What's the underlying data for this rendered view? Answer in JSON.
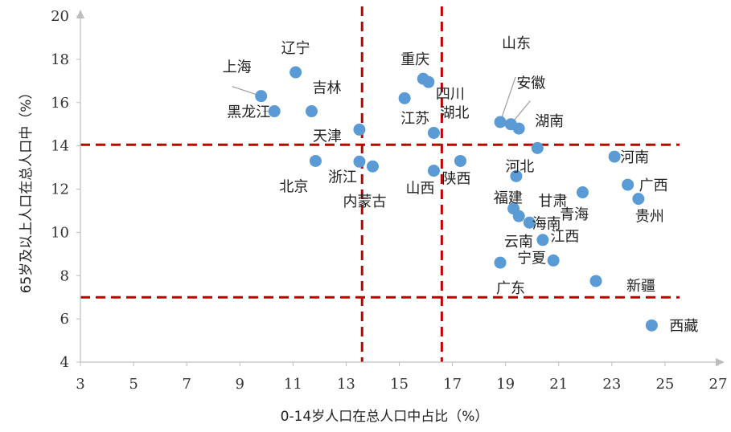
{
  "chart_data": {
    "type": "scatter",
    "title": "",
    "xlabel": "0-14岁人口在总人口中占比（%）",
    "ylabel": "65岁及以上人口在总人口中（%）",
    "xlim": [
      3,
      27
    ],
    "ylim": [
      4,
      20
    ],
    "xticks": [
      "3",
      "5",
      "7",
      "9",
      "11",
      "13",
      "15",
      "17",
      "19",
      "21",
      "23",
      "25",
      "27"
    ],
    "yticks": [
      "4",
      "6",
      "8",
      "10",
      "12",
      "14",
      "16",
      "18",
      "20"
    ],
    "grid": false,
    "reference_lines": {
      "x": [
        13.6,
        16.6
      ],
      "y": [
        7.0,
        14.05
      ]
    },
    "point_color": "#5B9BD5",
    "reference_color": "#C00000",
    "points": [
      {
        "name": "辽宁",
        "x": 11.1,
        "y": 17.4
      },
      {
        "name": "上海",
        "x": 9.8,
        "y": 16.3
      },
      {
        "name": "黑龙江",
        "x": 10.3,
        "y": 15.6
      },
      {
        "name": "吉林",
        "x": 11.7,
        "y": 15.6
      },
      {
        "name": "天津",
        "x": 13.5,
        "y": 14.75
      },
      {
        "name": "北京",
        "x": 11.85,
        "y": 13.3
      },
      {
        "name": "浙江",
        "x": 13.5,
        "y": 13.27
      },
      {
        "name": "内蒙古",
        "x": 14.0,
        "y": 13.05
      },
      {
        "name": "重庆",
        "x": 15.9,
        "y": 17.1
      },
      {
        "name": "四川",
        "x": 16.1,
        "y": 16.95
      },
      {
        "name": "江苏",
        "x": 15.2,
        "y": 16.2
      },
      {
        "name": "湖北",
        "x": 16.3,
        "y": 14.6
      },
      {
        "name": "山西",
        "x": 16.3,
        "y": 12.85
      },
      {
        "name": "陕西",
        "x": 17.3,
        "y": 13.3
      },
      {
        "name": "山东",
        "x": 18.8,
        "y": 15.1
      },
      {
        "name": "安徽",
        "x": 19.2,
        "y": 15.0
      },
      {
        "name": "湖南",
        "x": 19.5,
        "y": 14.8
      },
      {
        "name": "河北",
        "x": 20.2,
        "y": 13.9
      },
      {
        "name": "福建",
        "x": 19.4,
        "y": 12.6
      },
      {
        "name": "甘肃",
        "x": 21.9,
        "y": 11.85
      },
      {
        "name": "河南",
        "x": 23.1,
        "y": 13.5
      },
      {
        "name": "广西",
        "x": 23.6,
        "y": 12.2
      },
      {
        "name": "贵州",
        "x": 24.0,
        "y": 11.55
      },
      {
        "name": "海南",
        "x": 19.3,
        "y": 11.1
      },
      {
        "name": "江西",
        "x": 19.9,
        "y": 10.45
      },
      {
        "name": "青海",
        "x": 19.5,
        "y": 10.75
      },
      {
        "name": "云南",
        "x": 20.4,
        "y": 9.65
      },
      {
        "name": "宁夏",
        "x": 20.8,
        "y": 8.7
      },
      {
        "name": "广东",
        "x": 18.8,
        "y": 8.6
      },
      {
        "name": "新疆",
        "x": 22.4,
        "y": 7.75
      },
      {
        "name": "西藏",
        "x": 24.5,
        "y": 5.7
      }
    ]
  }
}
